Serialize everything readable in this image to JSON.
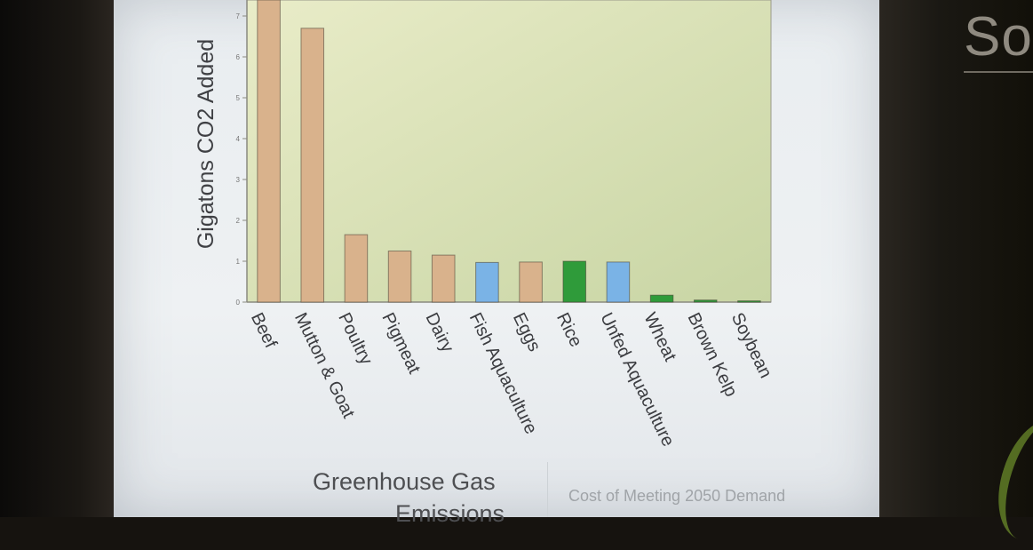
{
  "page": {
    "title_line1": "Greenhouse Gas",
    "title_line2": "Emissions",
    "secondary_caption": "Cost of Meeting 2050 Demand",
    "side_text": "So"
  },
  "chart_data": {
    "type": "bar",
    "ylabel": "Gigatons CO2 Added",
    "xlabel": "",
    "ylim": [
      0,
      7.3
    ],
    "yticks": [
      0,
      1,
      2,
      3,
      4,
      5,
      6,
      7
    ],
    "grid": false,
    "categories": [
      "Beef",
      "Mutton & Goat",
      "Poultry",
      "Pigmeat",
      "Dairy",
      "Fish Aquaculture",
      "Eggs",
      "Rice",
      "Unfed Aquaculture",
      "Wheat",
      "Brown Kelp",
      "Soybean"
    ],
    "values": [
      7.4,
      6.7,
      1.65,
      1.25,
      1.15,
      0.97,
      0.98,
      1.0,
      0.98,
      0.17,
      0.05,
      0.03
    ],
    "colors": [
      "#d9b28c",
      "#d9b28c",
      "#d9b28c",
      "#d9b28c",
      "#d9b28c",
      "#7ab3e6",
      "#d9b28c",
      "#2f9b3a",
      "#7ab3e6",
      "#2f9b3a",
      "#2f9b3a",
      "#2f9b3a"
    ],
    "plot_background": [
      "#e9ecc8",
      "#c8d5a4"
    ]
  }
}
